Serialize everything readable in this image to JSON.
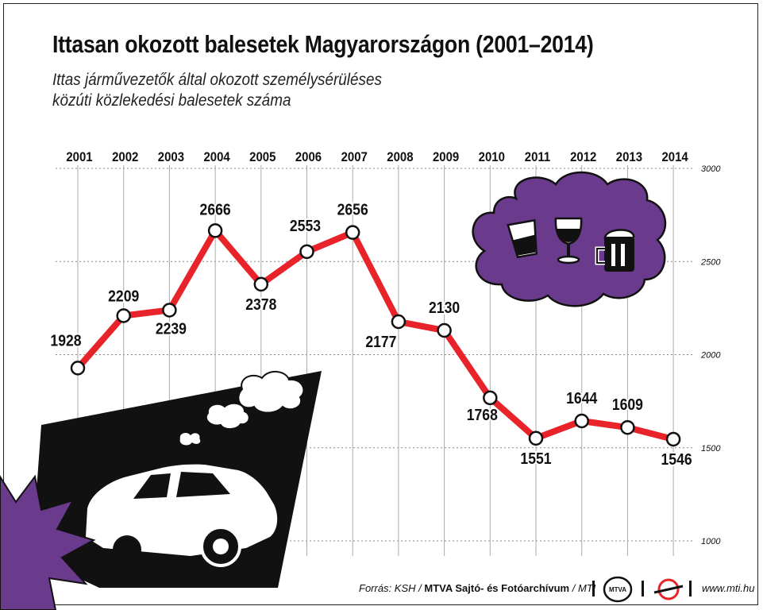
{
  "header": {
    "title": "Ittasan okozott balesetek Magyarországon (2001–2014)",
    "subtitle": "Ittas járművezetők által okozott személysérüléses közúti közlekedési balesetek száma"
  },
  "footer": {
    "source_prefix": "Forrás: KSH / ",
    "source_org": "MTVA Sajtó- és Fotóarchívum",
    "source_suffix": " / MTI",
    "website": "www.mti.hu",
    "logo_label": "MTVA"
  },
  "colors": {
    "line": "#e8242a",
    "cloud": "#6a3a8c",
    "burst": "#6a3a8c",
    "dark_panel": "#111111"
  },
  "icons": [
    "glass-icon",
    "wine-glass-icon",
    "beer-mug-icon",
    "car-icon",
    "thought-bubble-icon",
    "crash-burst-icon"
  ],
  "chart_data": {
    "type": "line",
    "x": [
      "2001",
      "2002",
      "2003",
      "2004",
      "2005",
      "2006",
      "2007",
      "2008",
      "2009",
      "2010",
      "2011",
      "2012",
      "2013",
      "2014"
    ],
    "series": [
      {
        "values": [
          1928,
          2209,
          2239,
          2666,
          2378,
          2553,
          2656,
          2177,
          2130,
          1768,
          1551,
          1644,
          1609,
          1546
        ]
      }
    ],
    "labels": [
      "1928",
      "2209",
      "2239",
      "2666",
      "2378",
      "2553",
      "2656",
      "2177",
      "2130",
      "1768",
      "1551",
      "1644",
      "1609",
      "1546"
    ],
    "yticks": [
      "3000",
      "2500",
      "2000",
      "1500",
      "1000"
    ],
    "ylim": [
      1000,
      3000
    ],
    "xaxis_position": "top",
    "yaxis_position": "right",
    "grid": true
  }
}
